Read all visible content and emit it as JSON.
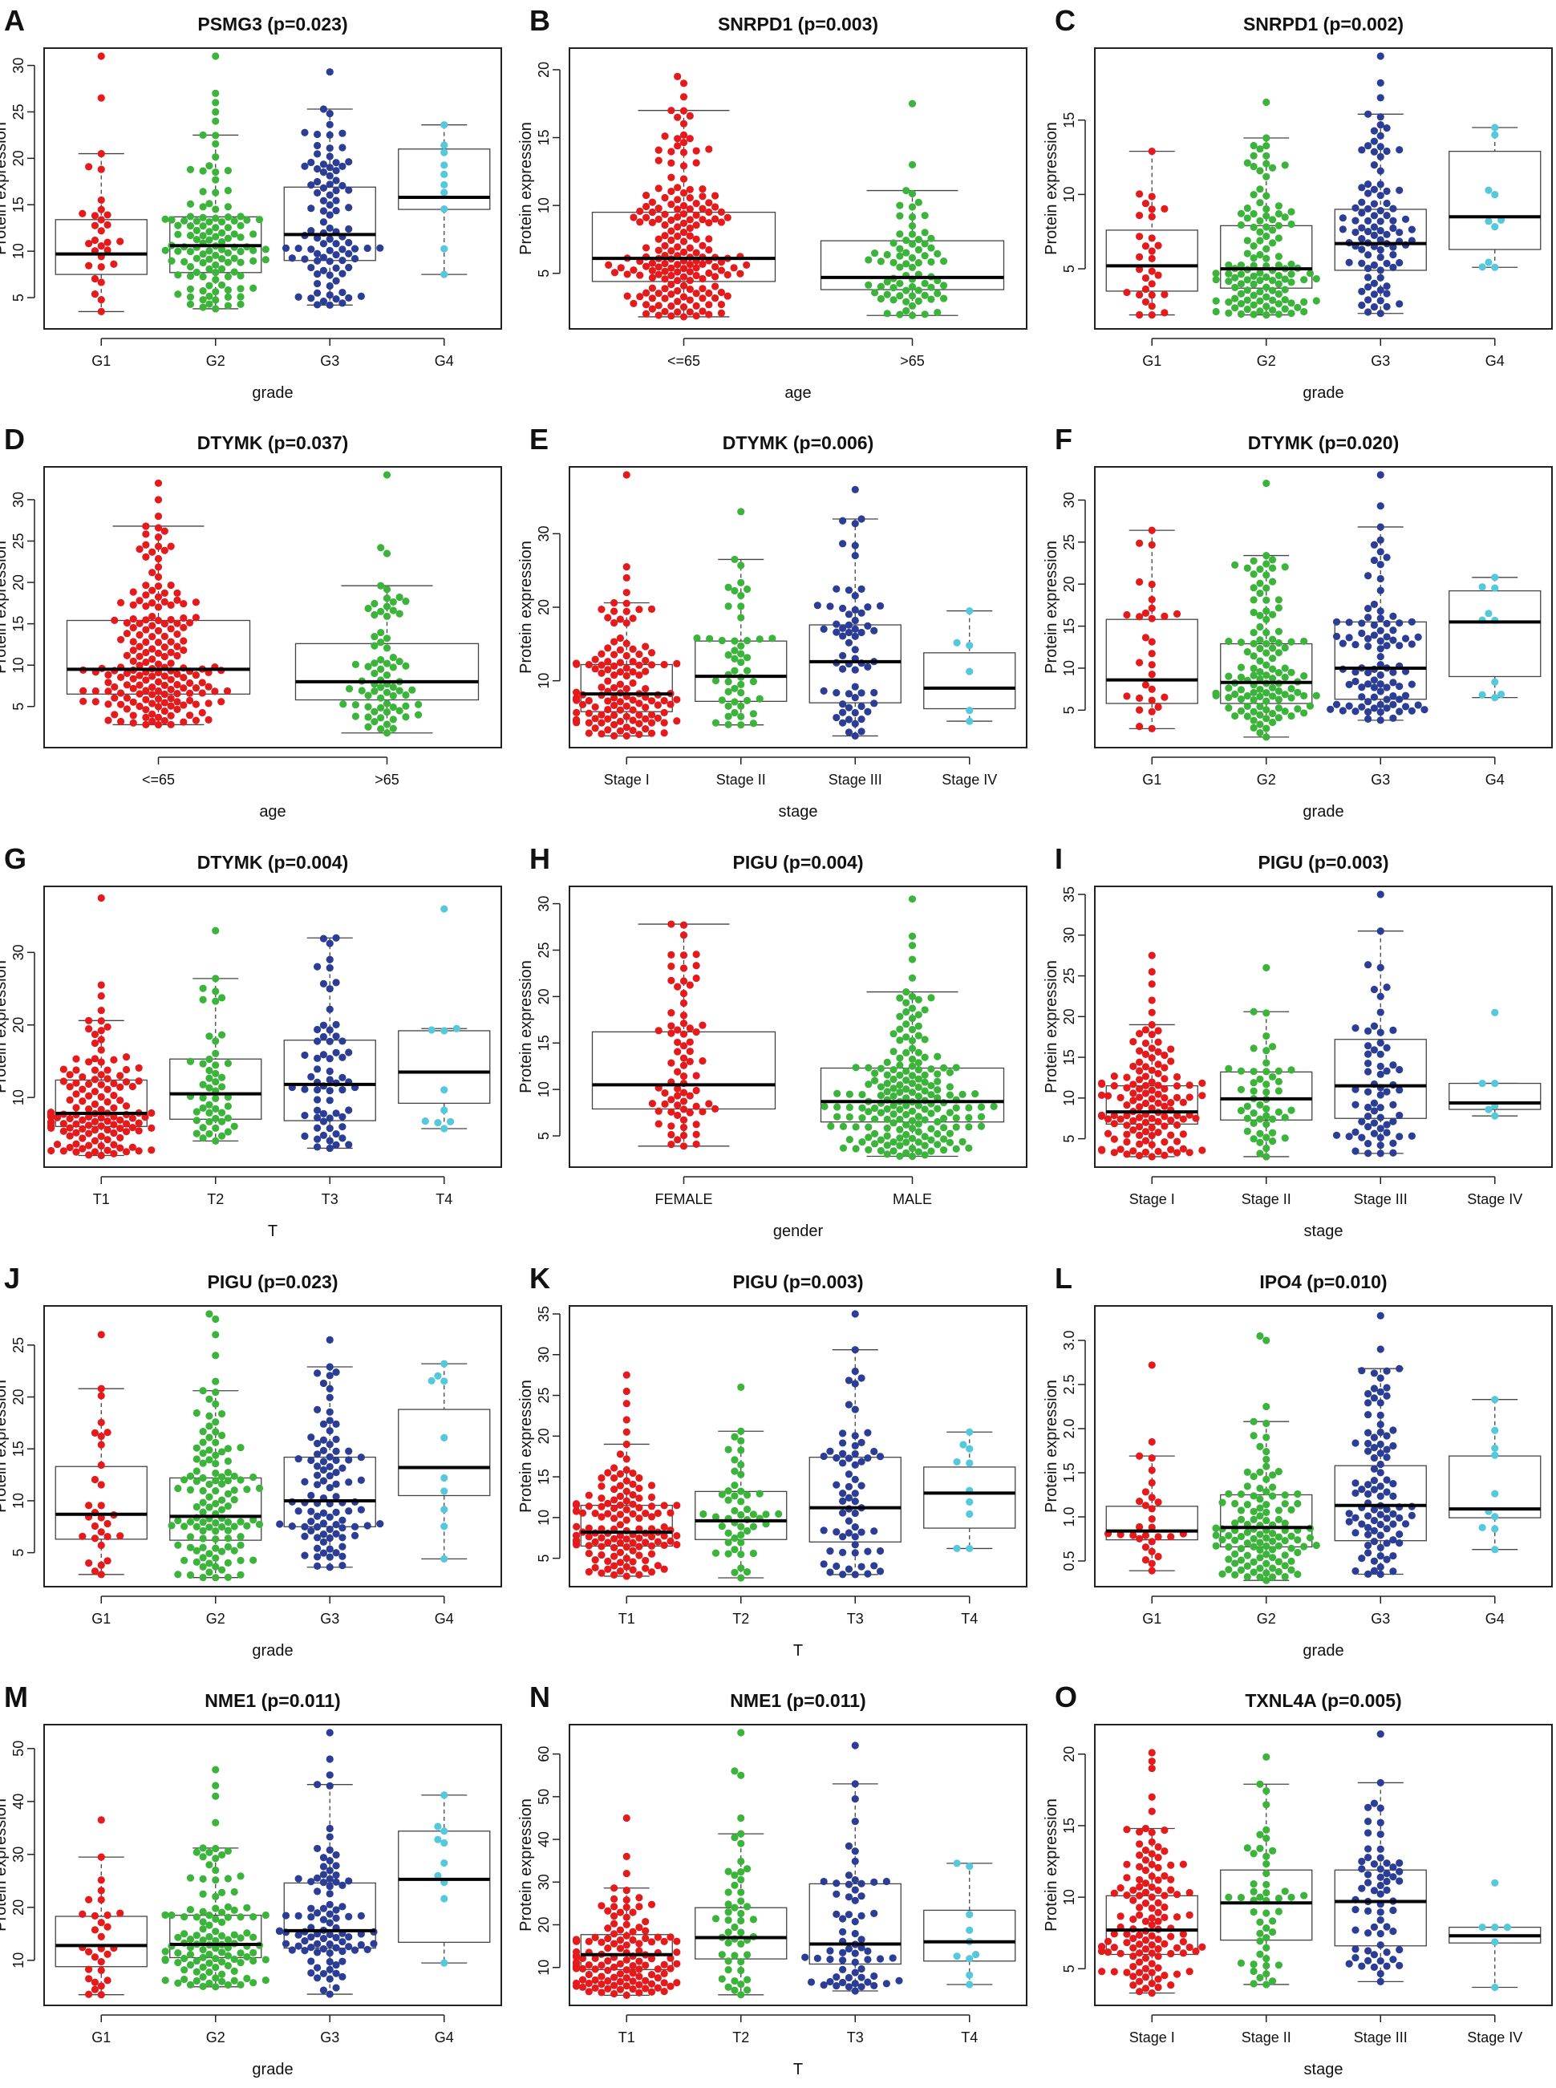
{
  "figure": {
    "type": "box-swarm panel grid",
    "rows": 5,
    "cols": 3
  },
  "colors": {
    "group1": "#e41a1c",
    "group2": "#3cb43c",
    "group3": "#2b3d94",
    "group4": "#56c8dc",
    "single_group2": "#3cb43c"
  },
  "chart_data": [
    {
      "letter": "A",
      "type": "box",
      "title": "PSMG3 (p=0.023)",
      "xlabel": "grade",
      "ylabel": "Protein expression",
      "categories": [
        "G1",
        "G2",
        "G3",
        "G4"
      ],
      "yticks": [
        5,
        10,
        15,
        20,
        25,
        30
      ],
      "ylim": [
        2.5,
        31
      ],
      "boxes": [
        {
          "q1": 7.5,
          "median": 9.7,
          "q3": 13.4,
          "min": 3.5,
          "max": 20.5,
          "n": 30,
          "outliers": [
            26.5,
            31
          ]
        },
        {
          "q1": 7.7,
          "median": 10.6,
          "q3": 13.7,
          "min": 3.8,
          "max": 22.5,
          "n": 120,
          "outliers": [
            24,
            25,
            26,
            27,
            31
          ]
        },
        {
          "q1": 9,
          "median": 11.8,
          "q3": 16.9,
          "min": 4.2,
          "max": 25.3,
          "n": 95,
          "outliers": [
            29.3
          ]
        },
        {
          "q1": 14.5,
          "median": 15.8,
          "q3": 21,
          "min": 7.5,
          "max": 23.6,
          "n": 10,
          "outliers": []
        }
      ]
    },
    {
      "letter": "B",
      "type": "box",
      "title": "SNRPD1 (p=0.003)",
      "xlabel": "age",
      "ylabel": "Protein expression",
      "categories": [
        "<=65",
        ">65"
      ],
      "yticks": [
        5,
        10,
        15,
        20
      ],
      "ylim": [
        1.5,
        21
      ],
      "boxes": [
        {
          "q1": 4.4,
          "median": 6.1,
          "q3": 9.5,
          "min": 1.8,
          "max": 17,
          "n": 190,
          "outliers": [
            18,
            19,
            19.5
          ]
        },
        {
          "q1": 3.8,
          "median": 4.7,
          "q3": 7.4,
          "min": 1.9,
          "max": 11.1,
          "n": 75,
          "outliers": [
            13,
            17.5
          ]
        }
      ]
    },
    {
      "letter": "C",
      "type": "box",
      "title": "SNRPD1 (p=0.002)",
      "xlabel": "grade",
      "ylabel": "Protein expression",
      "categories": [
        "G1",
        "G2",
        "G3",
        "G4"
      ],
      "yticks": [
        5,
        10,
        15
      ],
      "ylim": [
        1.5,
        19.3
      ],
      "boxes": [
        {
          "q1": 3.5,
          "median": 5.2,
          "q3": 7.6,
          "min": 1.9,
          "max": 12.9,
          "n": 30,
          "outliers": []
        },
        {
          "q1": 3.7,
          "median": 5,
          "q3": 7.9,
          "min": 1.9,
          "max": 13.8,
          "n": 120,
          "outliers": [
            16.2
          ]
        },
        {
          "q1": 4.9,
          "median": 6.7,
          "q3": 9,
          "min": 2,
          "max": 15.4,
          "n": 95,
          "outliers": [
            16.5,
            17.5,
            19.3
          ]
        },
        {
          "q1": 6.3,
          "median": 8.5,
          "q3": 12.9,
          "min": 5.1,
          "max": 14.5,
          "n": 10,
          "outliers": []
        }
      ]
    },
    {
      "letter": "D",
      "type": "box",
      "title": "DTYMK (p=0.037)",
      "xlabel": "age",
      "ylabel": "Protein expression",
      "categories": [
        "<=65",
        ">65"
      ],
      "yticks": [
        5,
        10,
        15,
        20,
        25,
        30
      ],
      "ylim": [
        1,
        33
      ],
      "boxes": [
        {
          "q1": 6.5,
          "median": 9.5,
          "q3": 15.4,
          "min": 2.8,
          "max": 26.8,
          "n": 190,
          "outliers": [
            28,
            30,
            32
          ]
        },
        {
          "q1": 5.8,
          "median": 8,
          "q3": 12.6,
          "min": 1.8,
          "max": 19.6,
          "n": 75,
          "outliers": [
            23.5,
            24.2,
            33
          ]
        }
      ]
    },
    {
      "letter": "E",
      "type": "box",
      "title": "DTYMK (p=0.006)",
      "xlabel": "stage",
      "ylabel": "Protein expression",
      "categories": [
        "Stage I",
        "Stage II",
        "Stage III",
        "Stage IV"
      ],
      "yticks": [
        10,
        20,
        30
      ],
      "ylim": [
        2,
        38
      ],
      "boxes": [
        {
          "q1": 5.8,
          "median": 8.2,
          "q3": 12.2,
          "min": 2.5,
          "max": 20.6,
          "n": 130,
          "outliers": [
            22,
            24,
            25.5,
            38
          ]
        },
        {
          "q1": 7.2,
          "median": 10.6,
          "q3": 15.4,
          "min": 4,
          "max": 26.5,
          "n": 50,
          "outliers": [
            33
          ]
        },
        {
          "q1": 7,
          "median": 12.6,
          "q3": 17.6,
          "min": 2.5,
          "max": 32,
          "n": 65,
          "outliers": [
            36
          ]
        },
        {
          "q1": 6.2,
          "median": 9,
          "q3": 13.8,
          "min": 4.5,
          "max": 19.5,
          "n": 6,
          "outliers": []
        }
      ]
    },
    {
      "letter": "F",
      "type": "box",
      "title": "DTYMK (p=0.020)",
      "xlabel": "grade",
      "ylabel": "Protein expression",
      "categories": [
        "G1",
        "G2",
        "G3",
        "G4"
      ],
      "yticks": [
        5,
        10,
        15,
        20,
        25,
        30
      ],
      "ylim": [
        1.5,
        33
      ],
      "boxes": [
        {
          "q1": 5.8,
          "median": 8.6,
          "q3": 15.8,
          "min": 2.8,
          "max": 26.4,
          "n": 30,
          "outliers": []
        },
        {
          "q1": 5.8,
          "median": 8.3,
          "q3": 12.9,
          "min": 1.8,
          "max": 23.4,
          "n": 120,
          "outliers": [
            32
          ]
        },
        {
          "q1": 6.3,
          "median": 10,
          "q3": 15.5,
          "min": 3.8,
          "max": 26.8,
          "n": 95,
          "outliers": [
            29.3,
            33
          ]
        },
        {
          "q1": 9,
          "median": 15.5,
          "q3": 19.2,
          "min": 6.5,
          "max": 20.8,
          "n": 10,
          "outliers": []
        }
      ]
    },
    {
      "letter": "G",
      "type": "box",
      "title": "DTYMK (p=0.004)",
      "xlabel": "T",
      "ylabel": "Protein expression",
      "categories": [
        "T1",
        "T2",
        "T3",
        "T4"
      ],
      "yticks": [
        10,
        20,
        30
      ],
      "ylim": [
        1.5,
        38
      ],
      "boxes": [
        {
          "q1": 6,
          "median": 7.8,
          "q3": 12.4,
          "min": 2,
          "max": 20.6,
          "n": 140,
          "outliers": [
            22,
            24,
            25.5,
            37.5
          ]
        },
        {
          "q1": 7,
          "median": 10.5,
          "q3": 15.3,
          "min": 4,
          "max": 26.4,
          "n": 50,
          "outliers": [
            33
          ]
        },
        {
          "q1": 6.8,
          "median": 11.8,
          "q3": 17.9,
          "min": 3,
          "max": 32,
          "n": 65,
          "outliers": []
        },
        {
          "q1": 9.2,
          "median": 13.5,
          "q3": 19.2,
          "min": 5.7,
          "max": 19.5,
          "n": 10,
          "outliers": [
            36
          ]
        }
      ]
    },
    {
      "letter": "H",
      "type": "box",
      "title": "PIGU (p=0.004)",
      "xlabel": "gender",
      "ylabel": "Protein expression",
      "categories": [
        "FEMALE",
        "MALE"
      ],
      "yticks": [
        5,
        10,
        15,
        20,
        25,
        30
      ],
      "ylim": [
        2.5,
        31
      ],
      "boxes": [
        {
          "q1": 7.9,
          "median": 10.5,
          "q3": 16.2,
          "min": 3.9,
          "max": 27.8,
          "n": 75,
          "outliers": []
        },
        {
          "q1": 6.5,
          "median": 8.7,
          "q3": 12.3,
          "min": 2.8,
          "max": 20.5,
          "n": 190,
          "outliers": [
            22,
            24,
            25.5,
            26.5,
            30.5
          ]
        }
      ]
    },
    {
      "letter": "I",
      "type": "box",
      "title": "PIGU (p=0.003)",
      "xlabel": "stage",
      "ylabel": "Protein expression",
      "categories": [
        "Stage I",
        "Stage II",
        "Stage III",
        "Stage IV"
      ],
      "yticks": [
        5,
        10,
        15,
        20,
        25,
        30,
        35
      ],
      "ylim": [
        2.5,
        35
      ],
      "boxes": [
        {
          "q1": 6.8,
          "median": 8.3,
          "q3": 11.5,
          "min": 2.8,
          "max": 19,
          "n": 130,
          "outliers": [
            20.5,
            22,
            24,
            25.5,
            27.5
          ]
        },
        {
          "q1": 7.3,
          "median": 9.9,
          "q3": 13.2,
          "min": 2.8,
          "max": 20.6,
          "n": 50,
          "outliers": [
            26
          ]
        },
        {
          "q1": 7.5,
          "median": 11.5,
          "q3": 17.2,
          "min": 3.2,
          "max": 30.5,
          "n": 65,
          "outliers": [
            35
          ]
        },
        {
          "q1": 8.6,
          "median": 9.4,
          "q3": 11.8,
          "min": 7.8,
          "max": 11.8,
          "n": 6,
          "outliers": [
            20.5
          ]
        }
      ]
    },
    {
      "letter": "J",
      "type": "box",
      "title": "PIGU (p=0.023)",
      "xlabel": "grade",
      "ylabel": "Protein expression",
      "categories": [
        "G1",
        "G2",
        "G3",
        "G4"
      ],
      "yticks": [
        5,
        10,
        15,
        20,
        25
      ],
      "ylim": [
        2.5,
        28
      ],
      "boxes": [
        {
          "q1": 6.3,
          "median": 8.7,
          "q3": 13.3,
          "min": 2.9,
          "max": 20.8,
          "n": 30,
          "outliers": [
            26
          ]
        },
        {
          "q1": 6.2,
          "median": 8.5,
          "q3": 12.2,
          "min": 2.6,
          "max": 20.6,
          "n": 120,
          "outliers": [
            21.5,
            24,
            26,
            27.5,
            28
          ]
        },
        {
          "q1": 7.5,
          "median": 10,
          "q3": 14.2,
          "min": 3.6,
          "max": 22.9,
          "n": 95,
          "outliers": [
            25.5
          ]
        },
        {
          "q1": 10.5,
          "median": 13.2,
          "q3": 18.8,
          "min": 4.4,
          "max": 23.2,
          "n": 10,
          "outliers": []
        }
      ]
    },
    {
      "letter": "K",
      "type": "box",
      "title": "PIGU (p=0.003)",
      "xlabel": "T",
      "ylabel": "Protein expression",
      "categories": [
        "T1",
        "T2",
        "T3",
        "T4"
      ],
      "yticks": [
        5,
        10,
        15,
        20,
        25,
        30,
        35
      ],
      "ylim": [
        2.5,
        35
      ],
      "boxes": [
        {
          "q1": 6.5,
          "median": 8.2,
          "q3": 11.5,
          "min": 2.8,
          "max": 19,
          "n": 140,
          "outliers": [
            20.5,
            22,
            24,
            25.5,
            27.5
          ]
        },
        {
          "q1": 7.3,
          "median": 9.6,
          "q3": 13.2,
          "min": 2.6,
          "max": 20.6,
          "n": 50,
          "outliers": [
            26
          ]
        },
        {
          "q1": 7,
          "median": 11.2,
          "q3": 17.4,
          "min": 3,
          "max": 30.6,
          "n": 65,
          "outliers": [
            35
          ]
        },
        {
          "q1": 8.7,
          "median": 13,
          "q3": 16.2,
          "min": 6.2,
          "max": 20.5,
          "n": 10,
          "outliers": []
        }
      ]
    },
    {
      "letter": "L",
      "type": "box",
      "title": "IPO4 (p=0.010)",
      "xlabel": "grade",
      "ylabel": "Protein expression",
      "categories": [
        "G1",
        "G2",
        "G3",
        "G4"
      ],
      "yticks": [
        0.5,
        1.0,
        1.5,
        2.0,
        2.5,
        3.0
      ],
      "ylim": [
        0.3,
        3.3
      ],
      "boxes": [
        {
          "q1": 0.74,
          "median": 0.84,
          "q3": 1.12,
          "min": 0.39,
          "max": 1.69,
          "n": 30,
          "outliers": [
            1.85,
            2.72
          ]
        },
        {
          "q1": 0.66,
          "median": 0.88,
          "q3": 1.25,
          "min": 0.28,
          "max": 2.08,
          "n": 120,
          "outliers": [
            2.25,
            3.0,
            3.05
          ]
        },
        {
          "q1": 0.73,
          "median": 1.13,
          "q3": 1.58,
          "min": 0.35,
          "max": 2.68,
          "n": 95,
          "outliers": [
            2.9,
            3.28
          ]
        },
        {
          "q1": 0.99,
          "median": 1.09,
          "q3": 1.69,
          "min": 0.63,
          "max": 2.33,
          "n": 10,
          "outliers": []
        }
      ]
    },
    {
      "letter": "M",
      "type": "box",
      "title": "NME1 (p=0.011)",
      "xlabel": "grade",
      "ylabel": "Protein expression",
      "categories": [
        "G1",
        "G2",
        "G3",
        "G4"
      ],
      "yticks": [
        10,
        20,
        30,
        40,
        50
      ],
      "ylim": [
        3,
        53
      ],
      "boxes": [
        {
          "q1": 8.8,
          "median": 12.8,
          "q3": 18.3,
          "min": 3.5,
          "max": 29.5,
          "n": 30,
          "outliers": [
            36.5
          ]
        },
        {
          "q1": 10.5,
          "median": 13,
          "q3": 18.5,
          "min": 5,
          "max": 31.2,
          "n": 120,
          "outliers": [
            36,
            41,
            43,
            46
          ]
        },
        {
          "q1": 12.3,
          "median": 15.6,
          "q3": 24.6,
          "min": 3.6,
          "max": 43.2,
          "n": 95,
          "outliers": [
            45,
            48,
            53
          ]
        },
        {
          "q1": 13.4,
          "median": 25.3,
          "q3": 34.4,
          "min": 9.5,
          "max": 41.2,
          "n": 10,
          "outliers": []
        }
      ]
    },
    {
      "letter": "N",
      "type": "box",
      "title": "NME1 (p=0.011)",
      "xlabel": "T",
      "ylabel": "Protein expression",
      "categories": [
        "T1",
        "T2",
        "T3",
        "T4"
      ],
      "yticks": [
        10,
        20,
        30,
        40,
        50,
        60
      ],
      "ylim": [
        3,
        65
      ],
      "boxes": [
        {
          "q1": 9.5,
          "median": 13,
          "q3": 17.7,
          "min": 3.5,
          "max": 28.6,
          "n": 140,
          "outliers": [
            32,
            36,
            45
          ]
        },
        {
          "q1": 12,
          "median": 17,
          "q3": 24,
          "min": 3.6,
          "max": 41.3,
          "n": 50,
          "outliers": [
            45,
            55,
            56,
            65
          ]
        },
        {
          "q1": 10.8,
          "median": 15.5,
          "q3": 29.6,
          "min": 4.5,
          "max": 53,
          "n": 65,
          "outliers": [
            62
          ]
        },
        {
          "q1": 11.5,
          "median": 16,
          "q3": 23.4,
          "min": 6,
          "max": 34.4,
          "n": 10,
          "outliers": []
        }
      ]
    },
    {
      "letter": "O",
      "type": "box",
      "title": "TXNL4A (p=0.005)",
      "xlabel": "stage",
      "ylabel": "Protein expression",
      "categories": [
        "Stage I",
        "Stage II",
        "Stage III",
        "Stage IV"
      ],
      "yticks": [
        5,
        10,
        15,
        20
      ],
      "ylim": [
        3,
        21.5
      ],
      "boxes": [
        {
          "q1": 6,
          "median": 7.7,
          "q3": 10.1,
          "min": 3.3,
          "max": 14.8,
          "n": 130,
          "outliers": [
            16,
            17,
            19,
            19.5,
            20.1
          ]
        },
        {
          "q1": 7,
          "median": 9.6,
          "q3": 11.9,
          "min": 3.9,
          "max": 17.9,
          "n": 50,
          "outliers": [
            19.8
          ]
        },
        {
          "q1": 6.6,
          "median": 9.7,
          "q3": 11.9,
          "min": 4.1,
          "max": 18,
          "n": 65,
          "outliers": [
            21.4
          ]
        },
        {
          "q1": 6.8,
          "median": 7.3,
          "q3": 7.9,
          "min": 3.7,
          "max": 7.9,
          "n": 6,
          "outliers": [
            11
          ]
        }
      ]
    }
  ]
}
